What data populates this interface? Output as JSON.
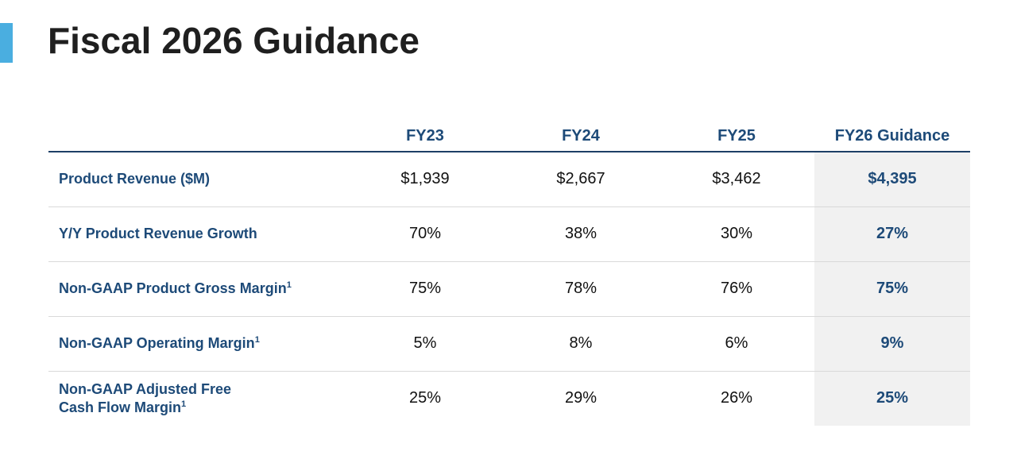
{
  "title": "Fiscal 2026 Guidance",
  "columns": [
    "FY23",
    "FY24",
    "FY25",
    "FY26 Guidance"
  ],
  "rows": [
    {
      "label_lines": [
        "Product Revenue ($M)"
      ],
      "footnote": "",
      "values": [
        "$1,939",
        "$2,667",
        "$3,462",
        "$4,395"
      ]
    },
    {
      "label_lines": [
        "Y/Y Product Revenue Growth"
      ],
      "footnote": "",
      "values": [
        "70%",
        "38%",
        "30%",
        "27%"
      ]
    },
    {
      "label_lines": [
        "Non-GAAP Product Gross Margin"
      ],
      "footnote": "1",
      "values": [
        "75%",
        "78%",
        "76%",
        "75%"
      ]
    },
    {
      "label_lines": [
        "Non-GAAP Operating Margin"
      ],
      "footnote": "1",
      "values": [
        "5%",
        "8%",
        "6%",
        "9%"
      ]
    },
    {
      "label_lines": [
        "Non-GAAP Adjusted Free",
        "Cash Flow Margin"
      ],
      "footnote": "1",
      "values": [
        "25%",
        "29%",
        "26%",
        "25%"
      ]
    }
  ],
  "colors": {
    "accent": "#4aaee0",
    "header_text": "#1d4a78",
    "guidance_bg": "#f1f1f1"
  }
}
